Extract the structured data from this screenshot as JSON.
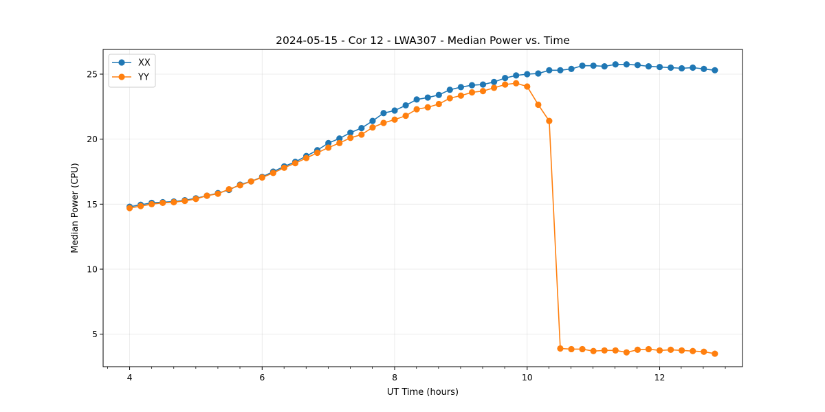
{
  "chart_data": {
    "type": "line",
    "title": "2024-05-15 - Cor 12 - LWA307 - Median Power vs. Time",
    "xlabel": "UT Time (hours)",
    "ylabel": "Median Power (CPU)",
    "xlim": [
      3.6,
      13.25
    ],
    "ylim": [
      2.5,
      26.9
    ],
    "xticks": [
      4,
      6,
      8,
      10,
      12
    ],
    "xminor_step": 0.333,
    "yticks": [
      5,
      10,
      15,
      20,
      25
    ],
    "grid": true,
    "legend_position": "top-left",
    "x": [
      4.0,
      4.167,
      4.333,
      4.5,
      4.667,
      4.833,
      5.0,
      5.167,
      5.333,
      5.5,
      5.667,
      5.833,
      6.0,
      6.167,
      6.333,
      6.5,
      6.667,
      6.833,
      7.0,
      7.167,
      7.333,
      7.5,
      7.667,
      7.833,
      8.0,
      8.167,
      8.333,
      8.5,
      8.667,
      8.833,
      9.0,
      9.167,
      9.333,
      9.5,
      9.667,
      9.833,
      10.0,
      10.167,
      10.333,
      10.5,
      10.667,
      10.833,
      11.0,
      11.167,
      11.333,
      11.5,
      11.667,
      11.833,
      12.0,
      12.167,
      12.333,
      12.5,
      12.667,
      12.833
    ],
    "series": [
      {
        "name": "XX",
        "color": "#1f77b4",
        "values": [
          14.8,
          14.95,
          15.1,
          15.15,
          15.2,
          15.3,
          15.45,
          15.65,
          15.85,
          16.1,
          16.5,
          16.75,
          17.1,
          17.5,
          17.9,
          18.25,
          18.7,
          19.15,
          19.7,
          20.05,
          20.5,
          20.85,
          21.4,
          22.0,
          22.2,
          22.6,
          23.05,
          23.2,
          23.4,
          23.8,
          24.0,
          24.15,
          24.2,
          24.4,
          24.7,
          24.9,
          25.0,
          25.05,
          25.3,
          25.3,
          25.4,
          25.65,
          25.65,
          25.6,
          25.75,
          25.75,
          25.7,
          25.6,
          25.55,
          25.5,
          25.45,
          25.5,
          25.4,
          25.3
        ]
      },
      {
        "name": "YY",
        "color": "#ff7f0e",
        "values": [
          14.7,
          14.85,
          15.0,
          15.1,
          15.15,
          15.25,
          15.4,
          15.65,
          15.8,
          16.15,
          16.45,
          16.75,
          17.05,
          17.4,
          17.8,
          18.15,
          18.55,
          18.95,
          19.35,
          19.7,
          20.1,
          20.35,
          20.9,
          21.25,
          21.5,
          21.8,
          22.3,
          22.45,
          22.7,
          23.15,
          23.35,
          23.6,
          23.7,
          23.95,
          24.2,
          24.3,
          24.05,
          22.65,
          21.4,
          3.9,
          3.85,
          3.85,
          3.7,
          3.75,
          3.75,
          3.6,
          3.8,
          3.85,
          3.75,
          3.8,
          3.75,
          3.7,
          3.65,
          3.5
        ]
      }
    ]
  }
}
